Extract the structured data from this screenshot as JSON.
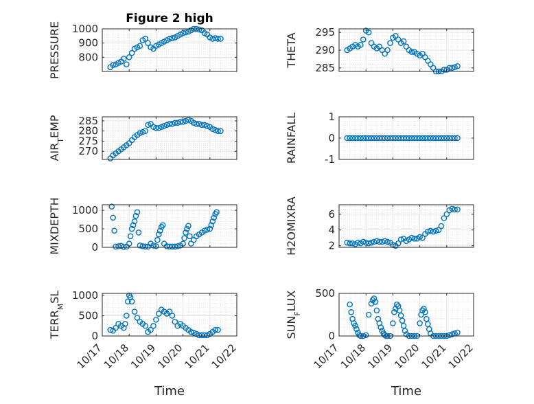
{
  "marker_color": "#0072BD",
  "chart_data": [
    {
      "type": "scatter",
      "title": "Figure 2 high",
      "ylabel": "PRESSURE",
      "ylabel_sub": "",
      "ylabel_after": "",
      "ylim": [
        700,
        1000
      ],
      "yticks": [
        800,
        900,
        1000
      ],
      "xlim": [
        0,
        5
      ],
      "xticks": [
        0,
        1,
        2,
        3,
        4,
        5
      ],
      "xticklabels": [],
      "xlabel": "",
      "grid": true,
      "x": [
        0.3,
        0.4,
        0.5,
        0.6,
        0.7,
        0.8,
        0.9,
        1.0,
        1.1,
        1.2,
        1.3,
        1.4,
        1.5,
        1.6,
        1.7,
        1.8,
        1.9,
        2.0,
        2.1,
        2.2,
        2.3,
        2.4,
        2.5,
        2.6,
        2.7,
        2.8,
        2.9,
        3.0,
        3.1,
        3.2,
        3.3,
        3.4,
        3.5,
        3.6,
        3.7,
        3.8,
        3.9,
        4.0,
        4.1,
        4.2,
        4.3,
        4.4
      ],
      "y": [
        730,
        745,
        750,
        760,
        770,
        790,
        750,
        800,
        830,
        860,
        870,
        880,
        920,
        930,
        900,
        870,
        860,
        880,
        890,
        900,
        910,
        920,
        930,
        935,
        940,
        950,
        960,
        970,
        975,
        980,
        990,
        1000,
        1000,
        995,
        990,
        970,
        960,
        940,
        930,
        935,
        930,
        930
      ]
    },
    {
      "type": "scatter",
      "title": "",
      "ylabel": "THETA",
      "ylabel_sub": "",
      "ylabel_after": "",
      "ylim": [
        284,
        296
      ],
      "yticks": [
        285,
        290,
        295
      ],
      "xlim": [
        0,
        5
      ],
      "xticks": [
        0,
        1,
        2,
        3,
        4,
        5
      ],
      "xticklabels": [],
      "xlabel": "",
      "grid": true,
      "x": [
        0.3,
        0.4,
        0.5,
        0.6,
        0.7,
        0.8,
        0.9,
        1.0,
        1.1,
        1.2,
        1.3,
        1.4,
        1.5,
        1.6,
        1.7,
        1.8,
        1.9,
        2.0,
        2.1,
        2.2,
        2.3,
        2.4,
        2.5,
        2.6,
        2.7,
        2.8,
        2.9,
        3.0,
        3.1,
        3.2,
        3.3,
        3.4,
        3.5,
        3.6,
        3.7,
        3.8,
        3.9,
        4.0,
        4.1,
        4.2,
        4.3,
        4.4
      ],
      "y": [
        290,
        290.5,
        291,
        291.5,
        291,
        291.5,
        293,
        295.5,
        295,
        292,
        291,
        290.5,
        291,
        290,
        289,
        290,
        292,
        293.5,
        294,
        293,
        292,
        292.5,
        291,
        290,
        289.5,
        289.5,
        289,
        288.5,
        289,
        288,
        287,
        286,
        285,
        284,
        284,
        284,
        284.5,
        284.5,
        285,
        285,
        285.2,
        285.5
      ]
    },
    {
      "type": "scatter",
      "title": "",
      "ylabel": "AIR",
      "ylabel_sub": "T",
      "ylabel_after": "EMP",
      "ylim": [
        266,
        287
      ],
      "yticks": [
        270,
        275,
        280,
        285
      ],
      "xlim": [
        0,
        5
      ],
      "xticks": [
        0,
        1,
        2,
        3,
        4,
        5
      ],
      "xticklabels": [],
      "xlabel": "",
      "grid": true,
      "x": [
        0.3,
        0.4,
        0.5,
        0.6,
        0.7,
        0.8,
        0.9,
        1.0,
        1.1,
        1.2,
        1.3,
        1.4,
        1.5,
        1.6,
        1.7,
        1.8,
        1.9,
        2.0,
        2.1,
        2.2,
        2.3,
        2.4,
        2.5,
        2.6,
        2.7,
        2.8,
        2.9,
        3.0,
        3.1,
        3.2,
        3.3,
        3.4,
        3.5,
        3.6,
        3.7,
        3.8,
        3.9,
        4.0,
        4.1,
        4.2,
        4.3,
        4.4
      ],
      "y": [
        266.5,
        268,
        269,
        270,
        271,
        272,
        273,
        274,
        275.5,
        277,
        278,
        279,
        279.5,
        280,
        283,
        283.5,
        282,
        281.5,
        281.5,
        282,
        282.5,
        283,
        283.5,
        283.5,
        284,
        284,
        284.5,
        284.5,
        285,
        285.5,
        285,
        284,
        283.5,
        283.5,
        283,
        283,
        282.5,
        282,
        281,
        280.5,
        280,
        280
      ]
    },
    {
      "type": "scatter",
      "title": "",
      "ylabel": "RAINFALL",
      "ylabel_sub": "",
      "ylabel_after": "",
      "ylim": [
        -1,
        1
      ],
      "yticks": [
        -1,
        0,
        1
      ],
      "xlim": [
        0,
        5
      ],
      "xticks": [
        0,
        1,
        2,
        3,
        4,
        5
      ],
      "xticklabels": [],
      "xlabel": "",
      "grid": true,
      "x": [
        0.3,
        0.4,
        0.5,
        0.6,
        0.7,
        0.8,
        0.9,
        1.0,
        1.1,
        1.2,
        1.3,
        1.4,
        1.5,
        1.6,
        1.7,
        1.8,
        1.9,
        2.0,
        2.1,
        2.2,
        2.3,
        2.4,
        2.5,
        2.6,
        2.7,
        2.8,
        2.9,
        3.0,
        3.1,
        3.2,
        3.3,
        3.4,
        3.5,
        3.6,
        3.7,
        3.8,
        3.9,
        4.0,
        4.1,
        4.2,
        4.3,
        4.4
      ],
      "y": [
        0,
        0,
        0,
        0,
        0,
        0,
        0,
        0,
        0,
        0,
        0,
        0,
        0,
        0,
        0,
        0,
        0,
        0,
        0,
        0,
        0,
        0,
        0,
        0,
        0,
        0,
        0,
        0,
        0,
        0,
        0,
        0,
        0,
        0,
        0,
        0,
        0,
        0,
        0,
        0,
        0,
        0
      ]
    },
    {
      "type": "scatter",
      "title": "",
      "ylabel": "MIXDEPTH",
      "ylabel_sub": "",
      "ylabel_after": "",
      "ylim": [
        0,
        1150
      ],
      "yticks": [
        0,
        500,
        1000
      ],
      "xlim": [
        0,
        5
      ],
      "xticks": [
        0,
        1,
        2,
        3,
        4,
        5
      ],
      "xticklabels": [],
      "xlabel": "",
      "grid": true,
      "x": [
        0.35,
        0.4,
        0.45,
        0.5,
        0.6,
        0.7,
        0.8,
        0.9,
        1.0,
        1.05,
        1.1,
        1.15,
        1.2,
        1.25,
        1.3,
        1.35,
        1.4,
        1.5,
        1.6,
        1.7,
        1.8,
        1.9,
        2.0,
        2.05,
        2.1,
        2.15,
        2.2,
        2.25,
        2.3,
        2.4,
        2.5,
        2.6,
        2.7,
        2.8,
        2.9,
        3.0,
        3.05,
        3.1,
        3.15,
        3.2,
        3.25,
        3.3,
        3.4,
        3.5,
        3.6,
        3.7,
        3.8,
        3.9,
        4.0,
        4.05,
        4.1,
        4.15,
        4.2,
        4.25
      ],
      "y": [
        1100,
        800,
        450,
        20,
        30,
        40,
        10,
        20,
        100,
        300,
        500,
        600,
        700,
        850,
        950,
        400,
        50,
        30,
        20,
        20,
        100,
        50,
        30,
        200,
        350,
        450,
        550,
        600,
        100,
        30,
        20,
        20,
        20,
        30,
        50,
        100,
        250,
        400,
        500,
        580,
        300,
        100,
        200,
        300,
        350,
        400,
        450,
        480,
        500,
        600,
        700,
        800,
        900,
        950
      ]
    },
    {
      "type": "scatter",
      "title": "",
      "ylabel": "H2OMIXRA",
      "ylabel_sub": "",
      "ylabel_after": "",
      "ylim": [
        1.8,
        7.2
      ],
      "yticks": [
        2,
        4,
        6
      ],
      "xlim": [
        0,
        5
      ],
      "xticks": [
        0,
        1,
        2,
        3,
        4,
        5
      ],
      "xticklabels": [],
      "xlabel": "",
      "grid": true,
      "x": [
        0.3,
        0.4,
        0.5,
        0.6,
        0.7,
        0.8,
        0.9,
        1.0,
        1.1,
        1.2,
        1.3,
        1.4,
        1.5,
        1.6,
        1.7,
        1.8,
        1.9,
        2.0,
        2.1,
        2.2,
        2.3,
        2.4,
        2.5,
        2.6,
        2.7,
        2.8,
        2.9,
        3.0,
        3.1,
        3.2,
        3.3,
        3.4,
        3.5,
        3.6,
        3.7,
        3.8,
        3.9,
        4.0,
        4.1,
        4.2,
        4.3,
        4.4
      ],
      "y": [
        2.4,
        2.3,
        2.3,
        2.2,
        2.4,
        2.3,
        2.5,
        2.4,
        2.3,
        2.4,
        2.5,
        2.6,
        2.5,
        2.5,
        2.6,
        2.5,
        2.4,
        2.1,
        2.0,
        2.3,
        2.8,
        2.9,
        2.6,
        2.8,
        3.0,
        2.9,
        2.9,
        3.1,
        3.0,
        3.5,
        3.8,
        3.9,
        3.8,
        3.9,
        4.0,
        4.5,
        5.5,
        6.0,
        6.5,
        6.7,
        6.6,
        6.6
      ]
    },
    {
      "type": "scatter",
      "title": "",
      "ylabel": "TERR",
      "ylabel_sub": "M",
      "ylabel_after": "SL",
      "ylim": [
        0,
        1050
      ],
      "yticks": [
        0,
        500,
        1000
      ],
      "xlim": [
        0,
        5
      ],
      "xticks": [
        0,
        1,
        2,
        3,
        4,
        5
      ],
      "xticklabels": [
        "10/17",
        "10/18",
        "10/19",
        "10/20",
        "10/21",
        "10/22"
      ],
      "xlabel": "Time",
      "grid": true,
      "x": [
        0.3,
        0.4,
        0.5,
        0.6,
        0.7,
        0.8,
        0.85,
        0.9,
        0.95,
        1.0,
        1.05,
        1.1,
        1.2,
        1.3,
        1.4,
        1.5,
        1.6,
        1.7,
        1.8,
        1.9,
        2.0,
        2.1,
        2.2,
        2.3,
        2.4,
        2.5,
        2.6,
        2.7,
        2.8,
        2.9,
        3.0,
        3.1,
        3.2,
        3.3,
        3.4,
        3.5,
        3.6,
        3.7,
        3.8,
        3.9,
        4.0,
        4.1,
        4.2,
        4.3
      ],
      "y": [
        150,
        130,
        200,
        300,
        250,
        200,
        300,
        500,
        850,
        1000,
        950,
        850,
        600,
        450,
        350,
        300,
        250,
        100,
        150,
        250,
        400,
        550,
        650,
        600,
        550,
        600,
        500,
        350,
        250,
        300,
        250,
        200,
        150,
        100,
        80,
        50,
        20,
        20,
        20,
        20,
        50,
        100,
        150,
        150
      ]
    },
    {
      "type": "scatter",
      "title": "",
      "ylabel": "SUN",
      "ylabel_sub": "F",
      "ylabel_after": "LUX",
      "ylim": [
        0,
        500
      ],
      "yticks": [
        0,
        500
      ],
      "xlim": [
        0,
        5
      ],
      "xticks": [
        0,
        1,
        2,
        3,
        4,
        5
      ],
      "xticklabels": [
        "10/17",
        "10/18",
        "10/19",
        "10/20",
        "10/21",
        "10/22"
      ],
      "xlabel": "Time",
      "grid": true,
      "x": [
        0.4,
        0.45,
        0.5,
        0.55,
        0.6,
        0.65,
        0.7,
        0.75,
        0.8,
        0.9,
        1.0,
        1.1,
        1.2,
        1.25,
        1.3,
        1.35,
        1.4,
        1.45,
        1.5,
        1.55,
        1.6,
        1.65,
        1.7,
        1.75,
        1.8,
        1.9,
        2.0,
        2.05,
        2.1,
        2.15,
        2.2,
        2.25,
        2.3,
        2.35,
        2.4,
        2.45,
        2.5,
        2.6,
        2.7,
        2.8,
        2.9,
        3.0,
        3.05,
        3.1,
        3.15,
        3.2,
        3.25,
        3.3,
        3.35,
        3.4,
        3.5,
        3.6,
        3.7,
        3.8,
        3.9,
        4.0,
        4.1,
        4.2,
        4.3,
        4.4
      ],
      "y": [
        370,
        280,
        200,
        150,
        120,
        80,
        40,
        10,
        0,
        0,
        10,
        250,
        380,
        420,
        440,
        400,
        300,
        200,
        150,
        100,
        60,
        30,
        10,
        0,
        0,
        0,
        150,
        280,
        320,
        370,
        350,
        300,
        240,
        180,
        120,
        60,
        20,
        0,
        0,
        0,
        0,
        150,
        250,
        300,
        320,
        280,
        200,
        140,
        80,
        30,
        0,
        0,
        0,
        0,
        0,
        0,
        10,
        20,
        30,
        40
      ]
    }
  ]
}
